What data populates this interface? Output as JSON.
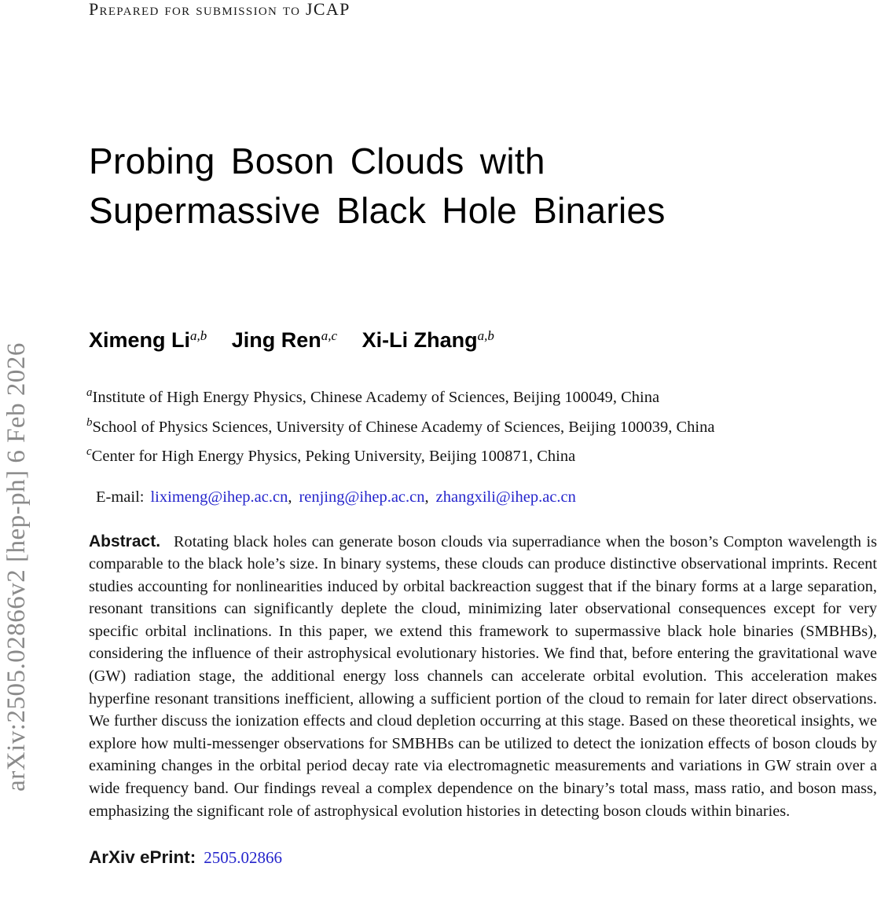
{
  "header": {
    "submission_note": "Prepared for submission to JCAP"
  },
  "watermark": {
    "text": "arXiv:2505.02866v2 [hep-ph] 6 Feb 2026"
  },
  "title": {
    "line1": "Probing Boson Clouds with",
    "line2": "Supermassive Black Hole Binaries"
  },
  "authors": [
    {
      "name": "Ximeng Li",
      "sup": "a,b"
    },
    {
      "name": "Jing Ren",
      "sup": "a,c"
    },
    {
      "name": "Xi-Li Zhang",
      "sup": "a,b"
    }
  ],
  "affiliations": [
    {
      "sup": "a",
      "text": "Institute of High Energy Physics, Chinese Academy of Sciences, Beijing 100049, China"
    },
    {
      "sup": "b",
      "text": "School of Physics Sciences, University of Chinese Academy of Sciences, Beijing 100039, China"
    },
    {
      "sup": "c",
      "text": "Center for High Energy Physics, Peking University, Beijing 100871, China"
    }
  ],
  "email": {
    "label": "E-mail:",
    "addresses": [
      "liximeng@ihep.ac.cn",
      "renjing@ihep.ac.cn",
      "zhangxili@ihep.ac.cn"
    ],
    "separator": ","
  },
  "abstract": {
    "label": "Abstract.",
    "text": "Rotating black holes can generate boson clouds via superradiance when the boson’s Compton wavelength is comparable to the black hole’s size. In binary systems, these clouds can produce distinctive observational imprints. Recent studies accounting for nonlinearities induced by orbital backreaction suggest that if the binary forms at a large separation, resonant transitions can significantly deplete the cloud, minimizing later observational consequences except for very specific orbital inclinations. In this paper, we extend this framework to supermassive black hole binaries (SMBHBs), considering the influence of their astrophysical evolutionary histories. We find that, before entering the gravitational wave (GW) radiation stage, the additional energy loss channels can accelerate orbital evolution. This acceleration makes hyperfine resonant transitions inefficient, allowing a sufficient portion of the cloud to remain for later direct observations. We further discuss the ionization effects and cloud depletion occurring at this stage. Based on these theoretical insights, we explore how multi-messenger observations for SMBHBs can be utilized to detect the ionization effects of boson clouds by examining changes in the orbital period decay rate via electromagnetic measurements and variations in GW strain over a wide frequency band. Our findings reveal a complex dependence on the binary’s total mass, mass ratio, and boson mass, emphasizing the significant role of astrophysical evolution histories in detecting boson clouds within binaries."
  },
  "eprint": {
    "label": "ArXiv ePrint:",
    "number": "2505.02866"
  },
  "colors": {
    "link_blue": "#2525cc",
    "watermark_gray": "#8a8a8a",
    "body_text": "#151515"
  }
}
